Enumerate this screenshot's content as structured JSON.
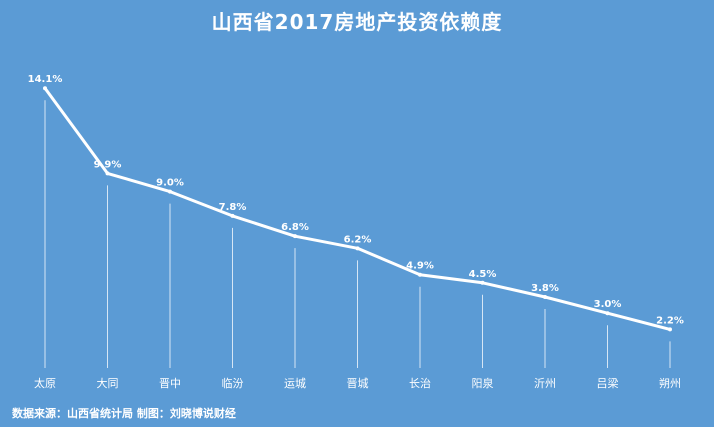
{
  "chart_data": {
    "type": "line",
    "title": "山西省2017房地产投资依赖度",
    "categories": [
      "太原",
      "大同",
      "晋中",
      "临汾",
      "运城",
      "晋城",
      "长治",
      "阳泉",
      "沂州",
      "吕梁",
      "朔州"
    ],
    "values": [
      14.1,
      9.9,
      9.0,
      7.8,
      6.8,
      6.2,
      4.9,
      4.5,
      3.8,
      3.0,
      2.2
    ],
    "value_labels": [
      "14.1%",
      "9.9%",
      "9.0%",
      "7.8%",
      "6.8%",
      "6.2%",
      "4.9%",
      "4.5%",
      "3.8%",
      "3.0%",
      "2.2%"
    ],
    "xlabel": "",
    "ylabel": "",
    "ylim": [
      0,
      15
    ],
    "grid": false,
    "legend": "none"
  },
  "source_text": "数据来源：山西省统计局 制图：刘晓博说财经",
  "colors": {
    "background": "#5b9bd5",
    "line": "#ffffff"
  }
}
